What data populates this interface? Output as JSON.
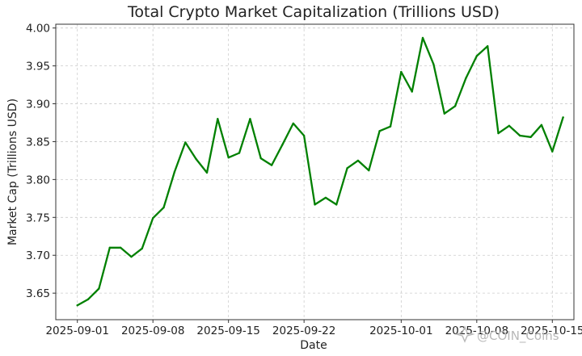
{
  "chart_data": {
    "type": "line",
    "title": "Total Crypto Market Capitalization (Trillions USD)",
    "xlabel": "Date",
    "ylabel": "Market Cap (Trillions USD)",
    "ylim": [
      3.615,
      4.005
    ],
    "yticks": [
      3.65,
      3.7,
      3.75,
      3.8,
      3.85,
      3.9,
      3.95,
      4.0
    ],
    "ytick_labels": [
      "3.65",
      "3.70",
      "3.75",
      "3.80",
      "3.85",
      "3.90",
      "3.95",
      "4.00"
    ],
    "xlim": [
      "2025-08-30",
      "2025-10-17"
    ],
    "xticks": [
      "2025-09-01",
      "2025-09-08",
      "2025-09-15",
      "2025-09-22",
      "2025-10-01",
      "2025-10-08",
      "2025-10-15"
    ],
    "grid": true,
    "series": [
      {
        "color": "#008000",
        "x": [
          "2025-09-01",
          "2025-09-02",
          "2025-09-03",
          "2025-09-04",
          "2025-09-05",
          "2025-09-06",
          "2025-09-07",
          "2025-09-08",
          "2025-09-09",
          "2025-09-10",
          "2025-09-11",
          "2025-09-12",
          "2025-09-13",
          "2025-09-14",
          "2025-09-15",
          "2025-09-16",
          "2025-09-17",
          "2025-09-18",
          "2025-09-19",
          "2025-09-20",
          "2025-09-21",
          "2025-09-22",
          "2025-09-23",
          "2025-09-24",
          "2025-09-25",
          "2025-09-26",
          "2025-09-27",
          "2025-09-28",
          "2025-09-29",
          "2025-09-30",
          "2025-10-01",
          "2025-10-02",
          "2025-10-03",
          "2025-10-04",
          "2025-10-05",
          "2025-10-06",
          "2025-10-07",
          "2025-10-08",
          "2025-10-09",
          "2025-10-10",
          "2025-10-11",
          "2025-10-12",
          "2025-10-13",
          "2025-10-14",
          "2025-10-15",
          "2025-10-16"
        ],
        "values": [
          3.634,
          3.642,
          3.656,
          3.71,
          3.71,
          3.698,
          3.709,
          3.749,
          3.763,
          3.81,
          3.849,
          3.827,
          3.809,
          3.88,
          3.829,
          3.835,
          3.88,
          3.828,
          3.819,
          3.846,
          3.874,
          3.858,
          3.767,
          3.776,
          3.767,
          3.815,
          3.825,
          3.812,
          3.864,
          3.87,
          3.942,
          3.916,
          3.987,
          3.952,
          3.887,
          3.897,
          3.934,
          3.963,
          3.976,
          3.861,
          3.871,
          3.858,
          3.856,
          3.872,
          3.837,
          3.882
        ]
      }
    ]
  },
  "watermark": {
    "text": "@COIN_Coins",
    "icon": "sparkle-icon"
  }
}
